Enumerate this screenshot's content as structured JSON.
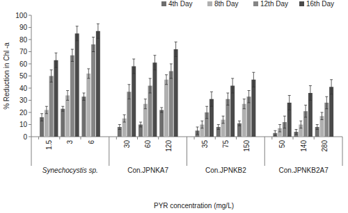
{
  "chart_data": {
    "type": "bar",
    "y_label": "% Reduction in Chl -a",
    "x_label": "PYR concentration (mg/L)",
    "categories": [
      "1.5",
      "3",
      "6",
      "30",
      "60",
      "120",
      "35",
      "75",
      "150",
      "50",
      "140",
      "280"
    ],
    "groups": [
      "Synechocystis sp.",
      "Con.JPNKA7",
      "Con.JPNKB2",
      "Con.JPNKB2A7"
    ],
    "series": [
      {
        "name": "4th Day",
        "color": "#6e6e6e",
        "values": [
          16,
          23,
          33,
          8,
          10,
          22,
          5,
          8,
          11,
          3,
          4,
          8
        ],
        "errors": [
          3,
          2,
          3,
          2,
          2,
          2,
          3,
          2,
          2,
          2,
          2,
          2
        ]
      },
      {
        "name": "8th Day",
        "color": "#b0b0b0",
        "values": [
          22,
          34,
          52,
          15,
          27,
          47,
          10,
          14,
          27,
          7,
          10,
          17
        ],
        "errors": [
          3,
          4,
          4,
          3,
          4,
          4,
          3,
          3,
          4,
          3,
          3,
          3
        ]
      },
      {
        "name": "12th Day",
        "color": "#858585",
        "values": [
          50,
          67,
          76,
          37,
          42,
          54,
          20,
          31,
          33,
          12,
          21,
          28
        ],
        "errors": [
          5,
          5,
          6,
          6,
          6,
          6,
          5,
          5,
          5,
          5,
          5,
          5
        ]
      },
      {
        "name": "16th Day",
        "color": "#4a4a4a",
        "values": [
          63,
          85,
          87,
          58,
          61,
          72,
          31,
          42,
          47,
          28,
          36,
          41
        ],
        "errors": [
          6,
          6,
          6,
          6,
          6,
          6,
          6,
          6,
          6,
          6,
          6,
          6
        ]
      }
    ],
    "ylim": [
      0,
      100
    ],
    "yticks": [
      0,
      10,
      20,
      30,
      40,
      50,
      60,
      70,
      80,
      90,
      100
    ],
    "grid": false,
    "legend": "top"
  }
}
